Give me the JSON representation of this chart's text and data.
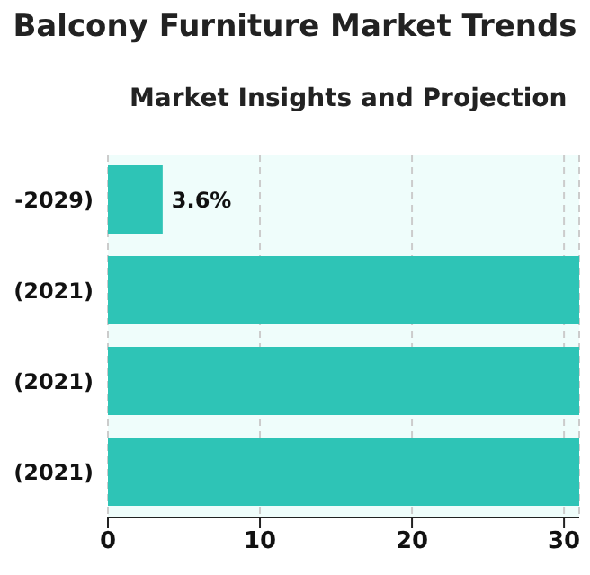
{
  "chart_data": {
    "type": "bar",
    "orientation": "horizontal",
    "title": "Balcony Furniture Market Trends",
    "subtitle": "Market Insights and Projection",
    "categories": [
      "-2029)",
      "(2021)",
      "(2021)",
      "(2021)"
    ],
    "values": [
      3.6,
      31,
      31,
      31
    ],
    "value_labels": [
      "3.6%",
      null,
      null,
      null
    ],
    "color": "#2ec4b6",
    "xlim": [
      0,
      31
    ],
    "xticks": [
      0,
      10,
      20,
      30
    ],
    "grid": "x"
  }
}
